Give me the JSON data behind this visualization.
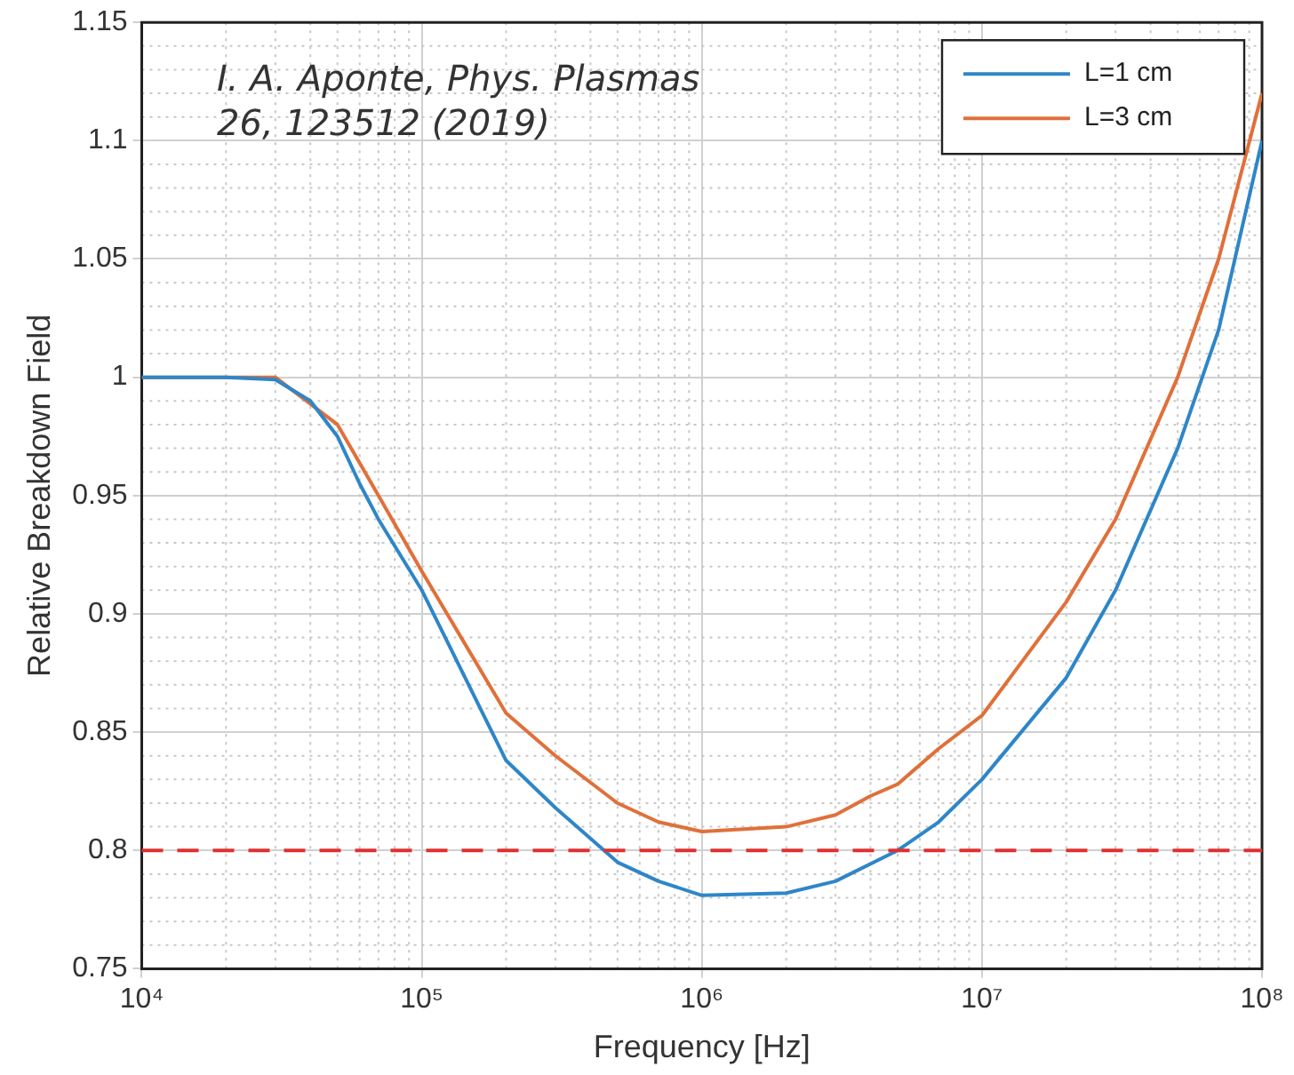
{
  "chart_data": {
    "type": "line",
    "xlabel": "Frequency [Hz]",
    "ylabel": "Relative Breakdown Field",
    "annotations": [
      "I. A. Aponte,  Phys. Plasmas 26, 123512 (2019)"
    ],
    "log": "x",
    "grid": true,
    "legend": "top right",
    "line_style": "solid",
    "marker": "none",
    "xlim": [
      10000,
      100000000
    ],
    "xticks": [
      {
        "value": 10000,
        "label": "10⁴"
      },
      {
        "value": 100000,
        "label": "10⁵"
      },
      {
        "value": 1000000,
        "label": "10⁶"
      },
      {
        "value": 10000000,
        "label": "10⁷"
      },
      {
        "value": 100000000,
        "label": "10⁸"
      }
    ],
    "ylim": [
      0.75,
      1.15
    ],
    "yticks": [
      0.75,
      0.8,
      0.85,
      0.9,
      0.95,
      1,
      1.05,
      1.1,
      1.15
    ],
    "ref_lines": [
      {
        "axis": "y",
        "value": 0.8,
        "color": "#e03030",
        "line_style": "dashed"
      }
    ],
    "series": [
      {
        "name": "L=1 cm",
        "color": "#2e86c8",
        "x": [
          10000,
          20000,
          30000,
          40000,
          50000,
          60000,
          70000,
          100000,
          200000,
          300000,
          500000,
          700000,
          1000000,
          2000000,
          3000000,
          5000000,
          7000000,
          10000000,
          20000000,
          30000000,
          50000000,
          70000000,
          100000000
        ],
        "values": [
          1,
          1,
          0.999,
          0.99,
          0.975,
          0.955,
          0.94,
          0.91,
          0.838,
          0.818,
          0.795,
          0.787,
          0.781,
          0.782,
          0.787,
          0.8,
          0.812,
          0.83,
          0.873,
          0.91,
          0.97,
          1.02,
          1.1
        ]
      },
      {
        "name": "L=3 cm",
        "color": "#e0703a",
        "x": [
          10000,
          30000,
          50000,
          70000,
          100000,
          200000,
          300000,
          500000,
          700000,
          1000000,
          2000000,
          3000000,
          4000000,
          5000000,
          7000000,
          10000000,
          20000000,
          30000000,
          50000000,
          70000000,
          100000000
        ],
        "values": [
          1,
          1,
          0.98,
          0.95,
          0.918,
          0.858,
          0.84,
          0.82,
          0.812,
          0.808,
          0.81,
          0.815,
          0.823,
          0.828,
          0.843,
          0.857,
          0.905,
          0.94,
          1,
          1.05,
          1.12
        ]
      }
    ]
  }
}
